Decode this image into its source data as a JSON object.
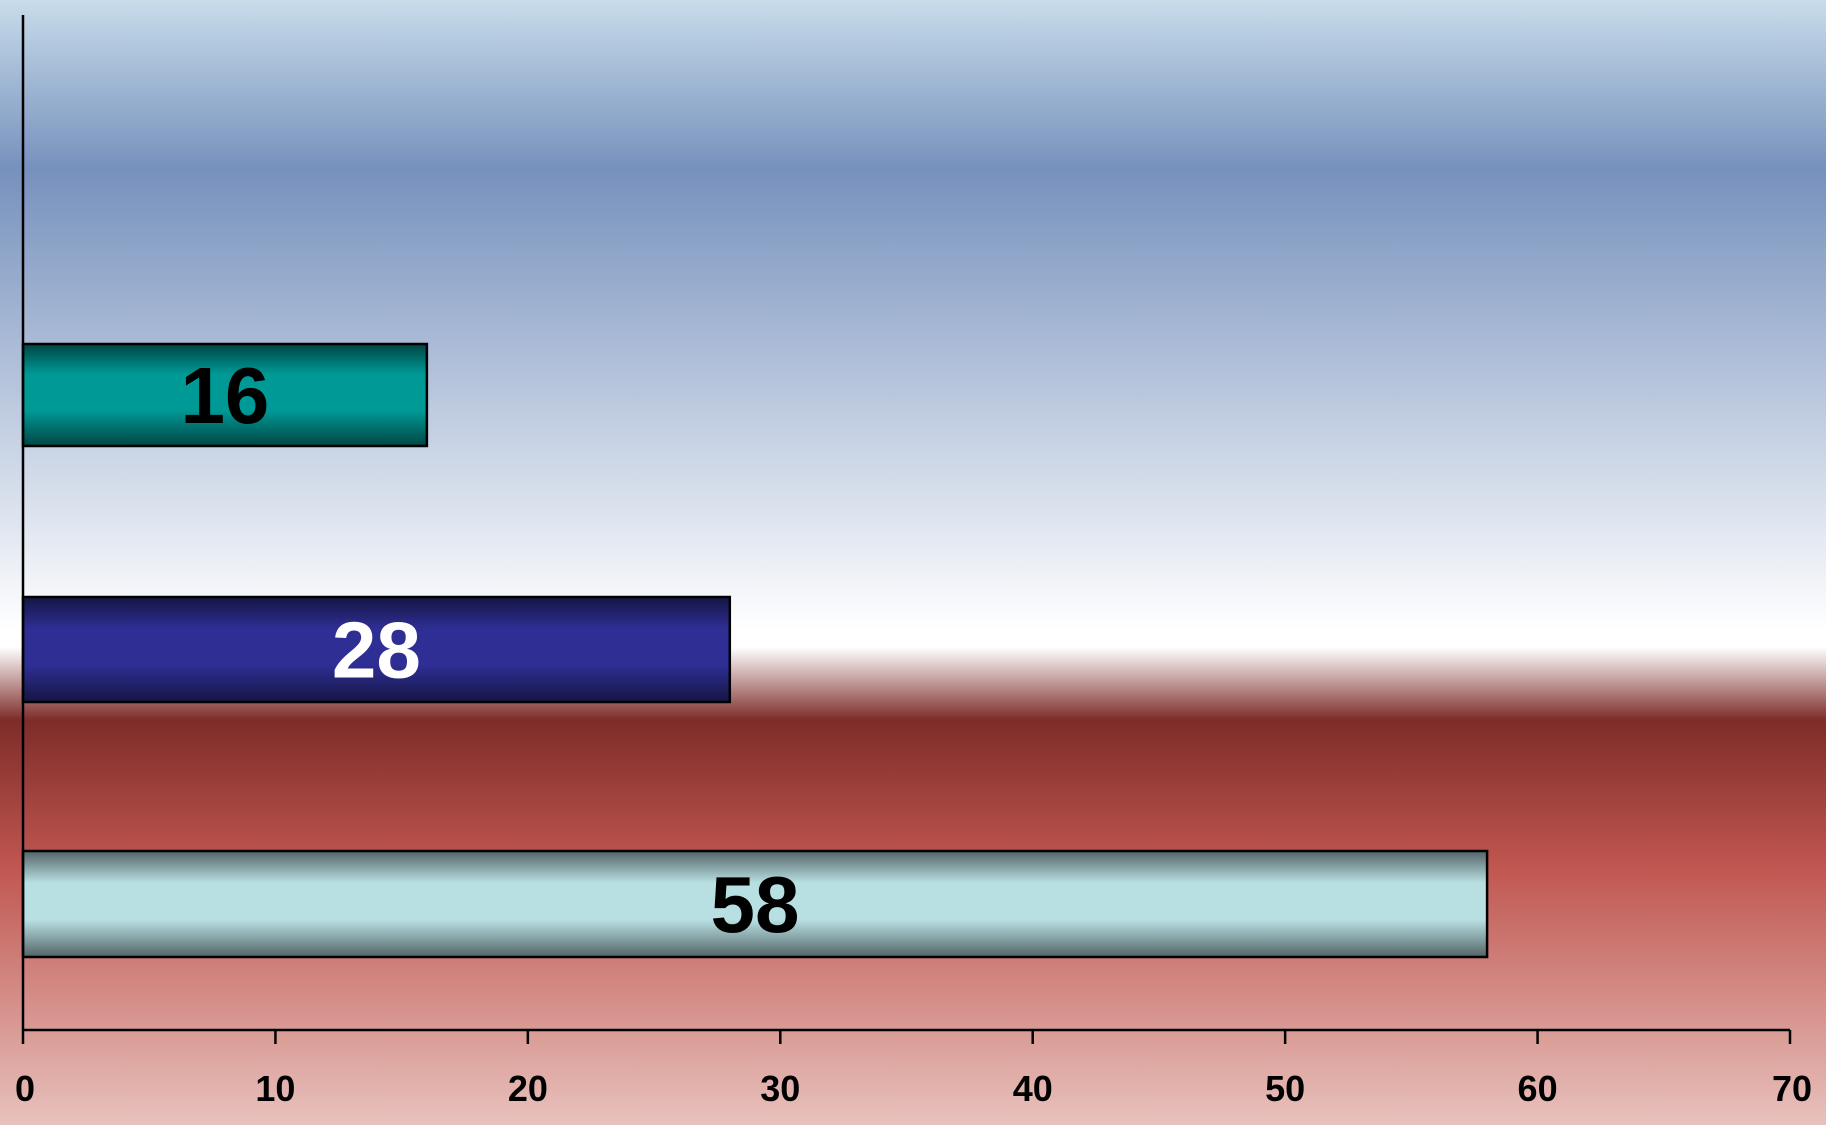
{
  "chart_data": {
    "type": "bar",
    "orientation": "horizontal",
    "categories": [
      "",
      "",
      ""
    ],
    "values": [
      16,
      28,
      58
    ],
    "data_labels": [
      "16",
      "28",
      "58"
    ],
    "xlim": [
      0,
      70
    ],
    "x_ticks": [
      0,
      10,
      20,
      30,
      40,
      50,
      60,
      70
    ],
    "x_tick_labels": [
      "0",
      "10",
      "20",
      "30",
      "40",
      "50",
      "60",
      "70"
    ],
    "grid": false,
    "legend": "none",
    "bar_colors": [
      "#009a96",
      "#2e2e94",
      "#b8dfe2"
    ],
    "label_colors": [
      "#000000",
      "#ffffff",
      "#000000"
    ],
    "background": {
      "top": "#c8dcea",
      "upper_band": "#7691bd",
      "middle": "#ffffff",
      "dark_band": "#7e2c29",
      "lower_band": "#c05650",
      "bottom": "#e8c2bd"
    }
  }
}
